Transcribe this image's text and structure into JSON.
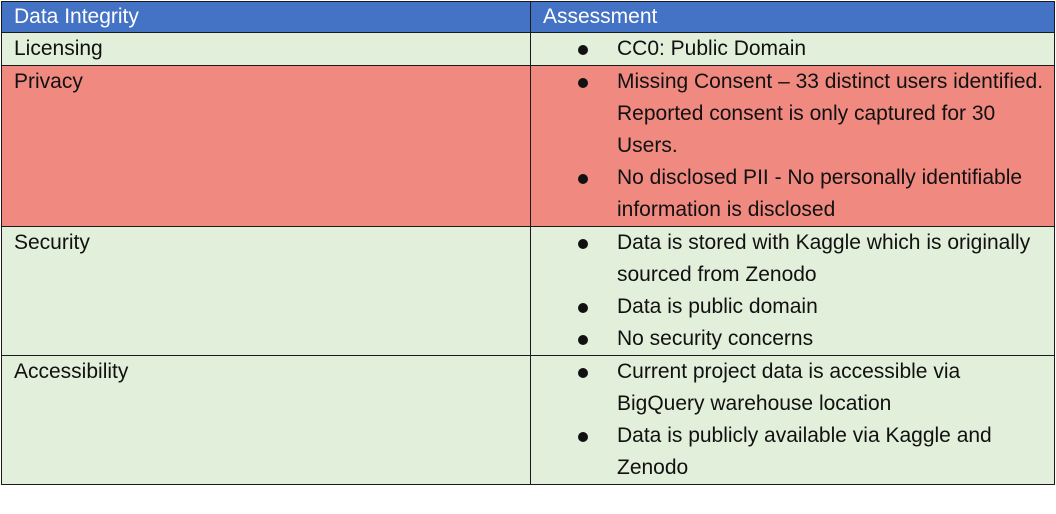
{
  "colors": {
    "header_bg": "#4472c4",
    "header_text": "#ffffff",
    "row_ok_bg": "#e2efda",
    "row_alert_bg": "#f08a80",
    "border": "#1a1a1a"
  },
  "table": {
    "headers": [
      "Data Integrity",
      "Assessment"
    ],
    "rows": [
      {
        "label": "Licensing",
        "status": "ok",
        "points": [
          "CC0: Public Domain"
        ]
      },
      {
        "label": "Privacy",
        "status": "alert",
        "points": [
          "Missing Consent – 33 distinct users identified. Reported consent is only captured for 30 Users.",
          "No disclosed PII - No personally identifiable information is disclosed"
        ]
      },
      {
        "label": "Security",
        "status": "ok",
        "points": [
          "Data is stored with Kaggle which is originally sourced from Zenodo",
          "Data is public domain",
          "No security concerns"
        ]
      },
      {
        "label": "Accessibility",
        "status": "ok",
        "points": [
          "Current project data is accessible via BigQuery warehouse location",
          "Data is publicly available via Kaggle and Zenodo"
        ]
      }
    ]
  }
}
